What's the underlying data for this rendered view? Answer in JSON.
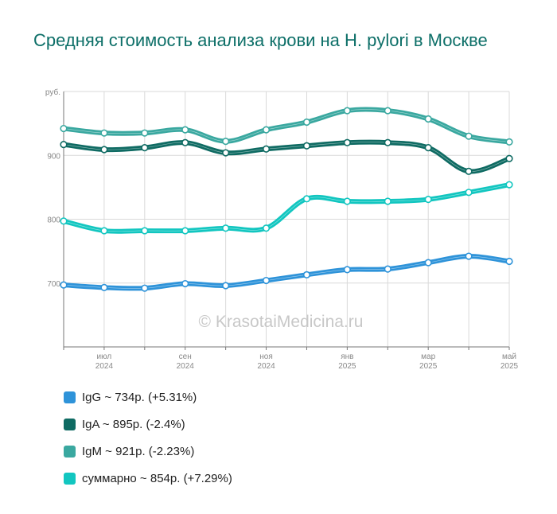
{
  "title": "Средняя стоимость анализа крови на H. pylori в Москве",
  "watermark": "© KrasotaiMedicina.ru",
  "chart_data": {
    "type": "line",
    "y_unit_label": "руб.",
    "ylim": [
      600,
      1000
    ],
    "yticks": [
      700,
      800,
      900
    ],
    "x": [
      "2024-06",
      "2024-07",
      "2024-08",
      "2024-09",
      "2024-10",
      "2024-11",
      "2024-12",
      "2025-01",
      "2025-02",
      "2025-03",
      "2025-04",
      "2025-05"
    ],
    "xtick_labels": [
      {
        "index": 1,
        "month": "июл",
        "year": "2024"
      },
      {
        "index": 3,
        "month": "сен",
        "year": "2024"
      },
      {
        "index": 5,
        "month": "ноя",
        "year": "2024"
      },
      {
        "index": 7,
        "month": "янв",
        "year": "2025"
      },
      {
        "index": 9,
        "month": "мар",
        "year": "2025"
      },
      {
        "index": 11,
        "month": "май",
        "year": "2025"
      }
    ],
    "grid": true,
    "legend_position": "bottom",
    "series": [
      {
        "name": "IgM",
        "color": "#3aa8a0",
        "values": [
          942,
          935,
          935,
          940,
          922,
          940,
          952,
          970,
          970,
          957,
          930,
          921
        ],
        "legend": "IgM ~ 921р. (-2.23%)"
      },
      {
        "name": "IgA",
        "color": "#0f6b63",
        "values": [
          917,
          909,
          912,
          920,
          904,
          910,
          915,
          920,
          920,
          912,
          875,
          895
        ],
        "legend": "IgA ~ 895р. (-2.4%)"
      },
      {
        "name": "суммарно",
        "color": "#12c6c0",
        "values": [
          797,
          782,
          782,
          782,
          786,
          786,
          832,
          828,
          828,
          831,
          842,
          854
        ],
        "legend": "суммарно ~ 854р. (+7.29%)"
      },
      {
        "name": "IgG",
        "color": "#2e93d9",
        "values": [
          697,
          693,
          692,
          699,
          696,
          704,
          713,
          721,
          722,
          732,
          742,
          734
        ],
        "legend": "IgG ~ 734р. (+5.31%)"
      }
    ]
  },
  "legend_order": [
    "IgG",
    "IgA",
    "IgM",
    "суммарно"
  ]
}
